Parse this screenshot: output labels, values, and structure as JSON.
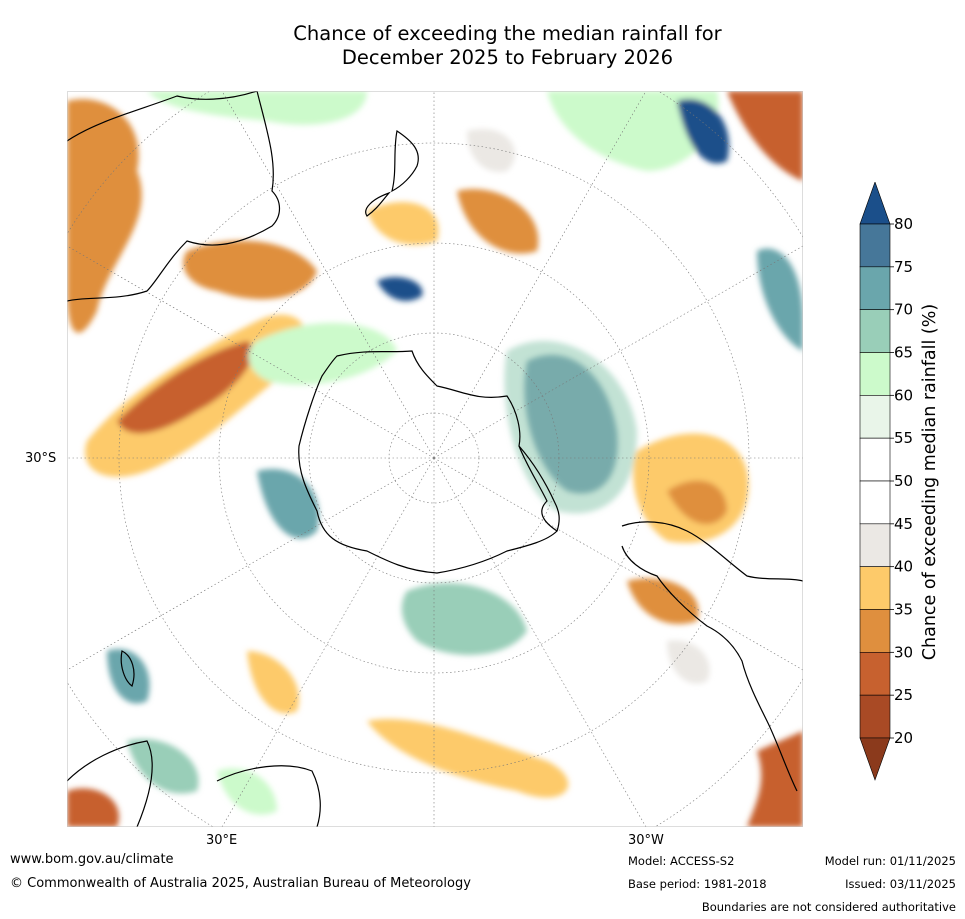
{
  "title": {
    "line1": "Chance of exceeding the median rainfall for",
    "line2": "December 2025 to February 2026"
  },
  "map": {
    "projection": "south-polar-stereographic",
    "lat_label": "30°S",
    "lon_labels": [
      "30°E",
      "30°W"
    ],
    "features": [
      "Antarctica",
      "Australia",
      "New Zealand",
      "South America",
      "Africa",
      "Madagascar"
    ]
  },
  "colorbar": {
    "title": "Chance of exceeding median rainfall (%)",
    "ticks": [
      "20",
      "25",
      "30",
      "35",
      "40",
      "45",
      "50",
      "55",
      "60",
      "65",
      "70",
      "75",
      "80"
    ],
    "bins": [
      {
        "range": "below 20",
        "color": "#8b3a1c"
      },
      {
        "range": "20-25",
        "color": "#a94a25"
      },
      {
        "range": "25-30",
        "color": "#c7612f"
      },
      {
        "range": "30-35",
        "color": "#df8f3e"
      },
      {
        "range": "35-40",
        "color": "#fdca6a"
      },
      {
        "range": "40-45",
        "color": "#ebe8e4"
      },
      {
        "range": "45-50",
        "color": "#ffffff"
      },
      {
        "range": "50-55",
        "color": "#ffffff"
      },
      {
        "range": "55-60",
        "color": "#e9f5e9"
      },
      {
        "range": "60-65",
        "color": "#ccfacb"
      },
      {
        "range": "65-70",
        "color": "#99ceb8"
      },
      {
        "range": "70-75",
        "color": "#6aa6ac"
      },
      {
        "range": "75-80",
        "color": "#467799"
      },
      {
        "range": "above 80",
        "color": "#1b4f8a"
      }
    ]
  },
  "footer": {
    "website": "www.bom.gov.au/climate",
    "copyright": "© Commonwealth of Australia 2025, Australian Bureau of Meteorology",
    "model": "Model: ACCESS-S2",
    "base_period": "Base period: 1981-2018",
    "model_run": "Model run: 01/11/2025",
    "issued": "Issued: 03/11/2025",
    "disclaimer": "Boundaries are not considered authoritative"
  }
}
